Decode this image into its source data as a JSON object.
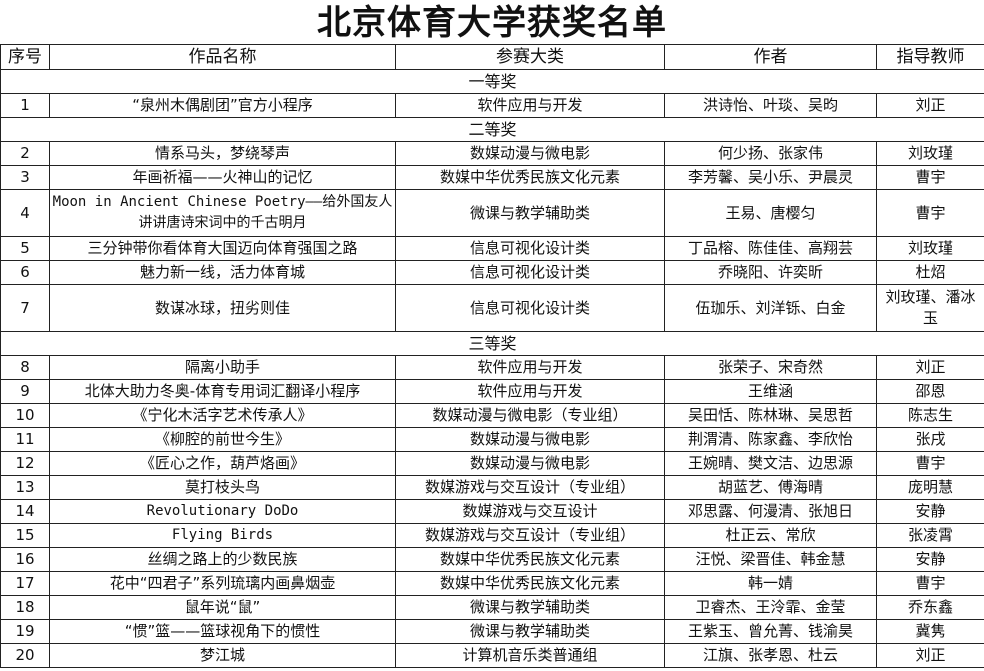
{
  "title": "北京体育大学获奖名单",
  "headers": [
    "序号",
    "作品名称",
    "参赛大类",
    "作者",
    "指导教师"
  ],
  "sections": [
    {
      "label": "一等奖",
      "rows": [
        [
          "1",
          "“泉州木偶剧团”官方小程序",
          "软件应用与开发",
          "洪诗怡、叶琰、吴昀",
          "刘正"
        ]
      ]
    },
    {
      "label": "二等奖",
      "rows": [
        [
          "2",
          "情系马头，梦绕琴声",
          "数媒动漫与微电影",
          "何少扬、张家伟",
          "刘玫瑾"
        ],
        [
          "3",
          "年画祈福——火神山的记忆",
          "数媒中华优秀民族文化元素",
          "李芳馨、吴小乐、尹晨灵",
          "曹宇"
        ],
        [
          "4",
          "Moon in Ancient Chinese Poetry——给外国友人讲讲唐诗宋词中的千古明月",
          "微课与教学辅助类",
          "王易、唐樱匀",
          "曹宇"
        ],
        [
          "5",
          "三分钟带你看体育大国迈向体育强国之路",
          "信息可视化设计类",
          "丁品榕、陈佳佳、高翔芸",
          "刘玫瑾"
        ],
        [
          "6",
          "魅力新一线，活力体育城",
          "信息可视化设计类",
          "乔晓阳、许奕昕",
          "杜炤"
        ],
        [
          "7",
          "数谋冰球，扭劣则佳",
          "信息可视化设计类",
          "伍珈乐、刘洋铄、白金",
          "刘玫瑾、潘冰玉"
        ]
      ]
    },
    {
      "label": "三等奖",
      "rows": [
        [
          "8",
          "隔离小助手",
          "软件应用与开发",
          "张荣子、宋奇然",
          "刘正"
        ],
        [
          "9",
          "北体大助力冬奥-体育专用词汇翻译小程序",
          "软件应用与开发",
          "王维涵",
          "邵恩"
        ],
        [
          "10",
          "《宁化木活字艺术传承人》",
          "数媒动漫与微电影（专业组）",
          "吴田恬、陈林琳、吴思哲",
          "陈志生"
        ],
        [
          "11",
          "《柳腔的前世今生》",
          "数媒动漫与微电影",
          "荆渭清、陈家鑫、李欣怡",
          "张戌"
        ],
        [
          "12",
          "《匠心之作，葫芦烙画》",
          "数媒动漫与微电影",
          "王婉晴、樊文洁、边思源",
          "曹宇"
        ],
        [
          "13",
          "莫打枝头鸟",
          "数媒游戏与交互设计（专业组）",
          "胡蓝艺、傅海晴",
          "庞明慧"
        ],
        [
          "14",
          "Revolutionary DoDo",
          "数媒游戏与交互设计",
          "邓思露、何漫清、张旭日",
          "安静"
        ],
        [
          "15",
          "Flying Birds",
          "数媒游戏与交互设计（专业组）",
          "杜正云、常欣",
          "张凌霄"
        ],
        [
          "16",
          "丝绸之路上的少数民族",
          "数媒中华优秀民族文化元素",
          "汪悦、梁晋佳、韩金慧",
          "安静"
        ],
        [
          "17",
          "花中“四君子”系列琉璃内画鼻烟壶",
          "数媒中华优秀民族文化元素",
          "韩一婧",
          "曹宇"
        ],
        [
          "18",
          "鼠年说“鼠”",
          "微课与教学辅助类",
          "卫睿杰、王泠霏、金莹",
          "乔东鑫"
        ],
        [
          "19",
          "“惯”篮——篮球视角下的惯性",
          "微课与教学辅助类",
          "王紫玉、曾允菁、钱渝昊",
          "冀隽"
        ],
        [
          "20",
          "梦江城",
          "计算机音乐类普通组",
          "江旗、张孝恩、杜云",
          "刘正"
        ]
      ]
    }
  ]
}
